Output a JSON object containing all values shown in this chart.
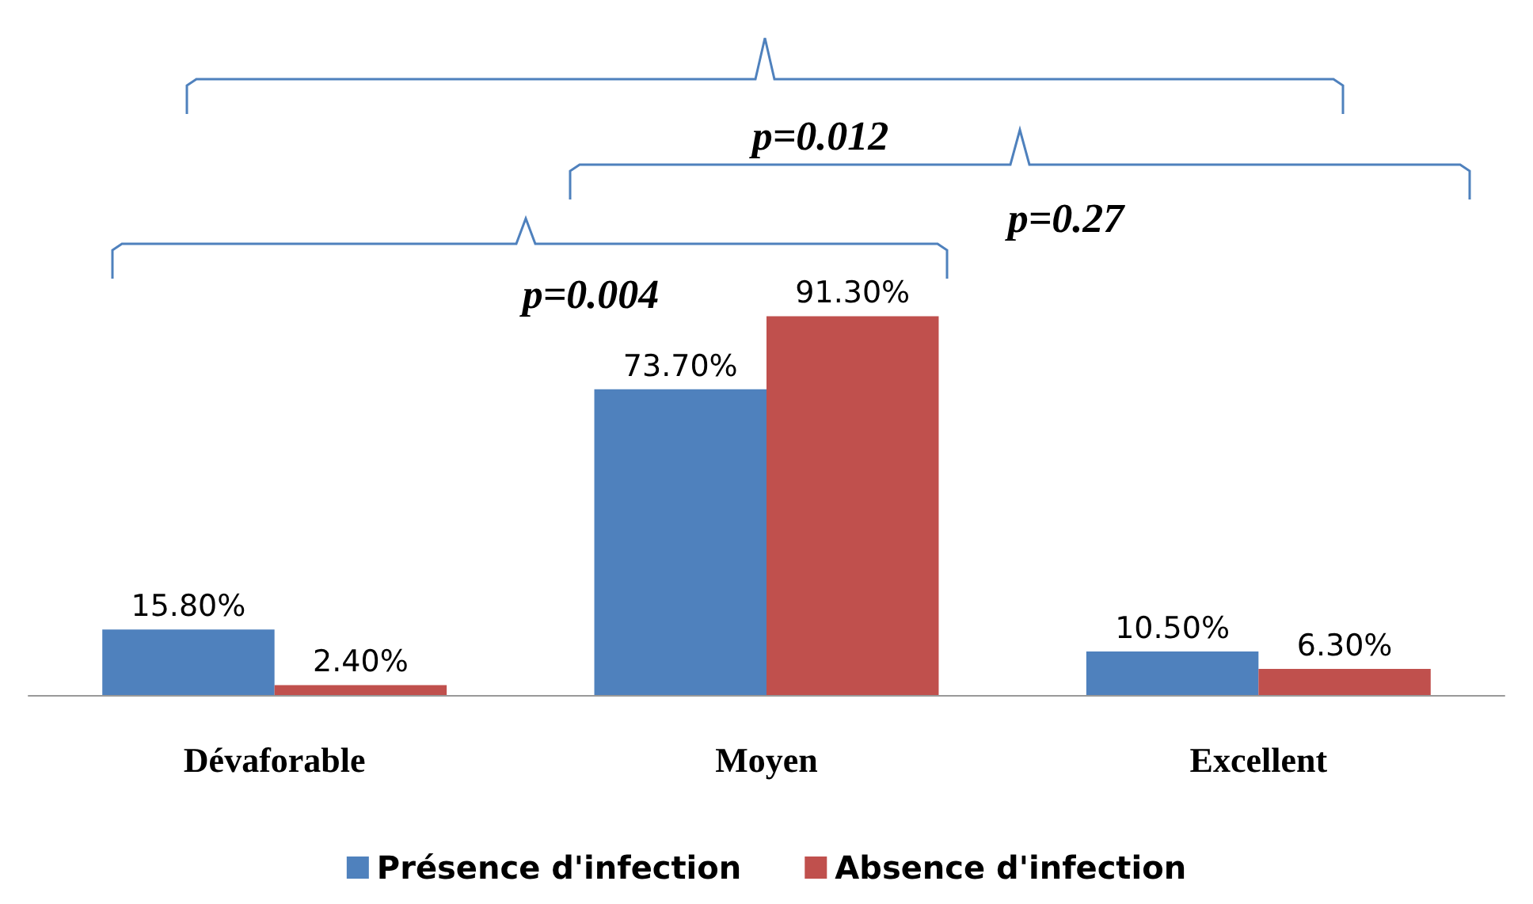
{
  "chart_data": {
    "type": "bar",
    "categories": [
      "Dévaforable",
      "Moyen",
      "Excellent"
    ],
    "series": [
      {
        "name": "Présence d'infection",
        "color": "#4f81bd",
        "values": [
          15.8,
          73.7,
          10.5
        ],
        "value_labels": [
          "15.80%",
          "73.70%",
          "10.50%"
        ]
      },
      {
        "name": "Absence d'infection",
        "color": "#c0504d",
        "values": [
          2.4,
          91.3,
          6.3
        ],
        "value_labels": [
          "2.40%",
          "91.30%",
          "6.30%"
        ]
      }
    ],
    "annotations": [
      "p=0.012",
      "p=0.27",
      "p=0.004"
    ],
    "legend": "bottom"
  }
}
